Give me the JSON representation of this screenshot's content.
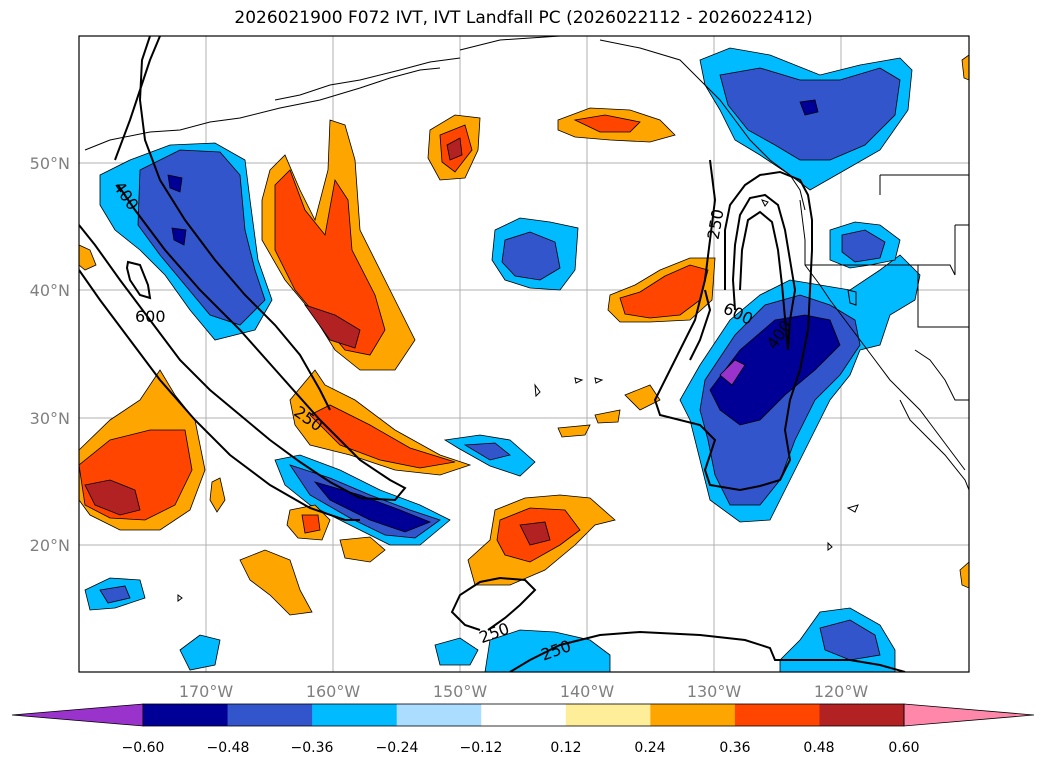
{
  "title": "2026021900 F072 IVT, IVT Landfall PC (2026022112 - 2026022412)",
  "map": {
    "lat_labels": [
      "50°N",
      "40°N",
      "30°N",
      "20°N"
    ],
    "lon_labels": [
      "170°W",
      "160°W",
      "150°W",
      "140°W",
      "130°W",
      "120°W"
    ],
    "contour_labels": [
      "400",
      "600",
      "250",
      "250",
      "600",
      "400",
      "250",
      "250"
    ]
  },
  "colorbar": {
    "tick_labels": [
      "−0.60",
      "−0.48",
      "−0.36",
      "−0.24",
      "−0.12",
      "0.12",
      "0.24",
      "0.36",
      "0.48",
      "0.60"
    ],
    "colors": [
      "#9933cc",
      "#000096",
      "#3355cc",
      "#00bbff",
      "#aaddff",
      "#ffffff",
      "#ffee99",
      "#ffa500",
      "#ff4500",
      "#b22222",
      "#ff88aa"
    ]
  },
  "palette": {
    "purple": "#9933cc",
    "navy": "#000096",
    "blue": "#3355cc",
    "cyan": "#00bbff",
    "lightblue": "#aaddff",
    "yellow": "#ffee99",
    "orange": "#ffa500",
    "redorange": "#ff4500",
    "darkred": "#b22222"
  }
}
